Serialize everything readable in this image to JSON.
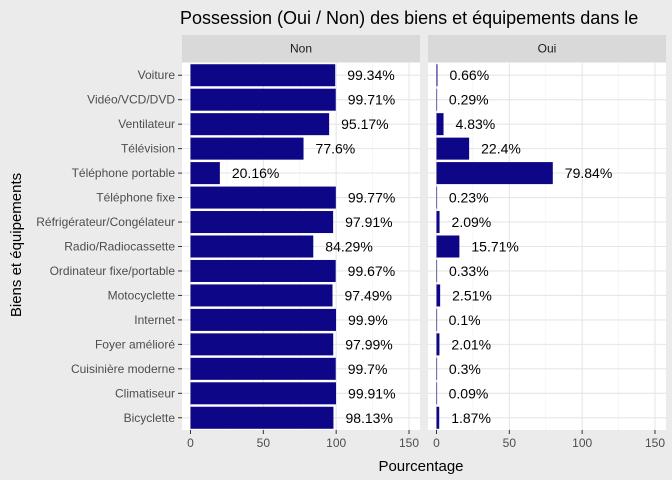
{
  "chart_data": {
    "type": "bar",
    "orientation": "horizontal",
    "title": "Possession (Oui / Non) des biens et équipements dans le",
    "xlabel": "Pourcentage",
    "ylabel": "Biens et équipements",
    "xlim": [
      0,
      150
    ],
    "x_ticks": [
      0,
      50,
      100,
      150
    ],
    "grid": true,
    "bar_color": "#0d0787",
    "categories": [
      "Voiture",
      "Vidéo/VCD/DVD",
      "Ventilateur",
      "Télévision",
      "Téléphone portable",
      "Téléphone fixe",
      "Réfrigérateur/Congélateur",
      "Radio/Radiocassette",
      "Ordinateur fixe/portable",
      "Motocyclette",
      "Internet",
      "Foyer amélioré",
      "Cuisinière moderne",
      "Climatiseur",
      "Bicyclette"
    ],
    "facets": [
      {
        "name": "Non",
        "values": [
          99.34,
          99.71,
          95.17,
          77.6,
          20.16,
          99.77,
          97.91,
          84.29,
          99.67,
          97.49,
          99.9,
          97.99,
          99.7,
          99.91,
          98.13
        ],
        "labels": [
          "99.34%",
          "99.71%",
          "95.17%",
          "77.6%",
          "20.16%",
          "99.77%",
          "97.91%",
          "84.29%",
          "99.67%",
          "97.49%",
          "99.9%",
          "97.99%",
          "99.7%",
          "99.91%",
          "98.13%"
        ]
      },
      {
        "name": "Oui",
        "values": [
          0.66,
          0.29,
          4.83,
          22.4,
          79.84,
          0.23,
          2.09,
          15.71,
          0.33,
          2.51,
          0.1,
          2.01,
          0.3,
          0.09,
          1.87
        ],
        "labels": [
          "0.66%",
          "0.29%",
          "4.83%",
          "22.4%",
          "79.84%",
          "0.23%",
          "2.09%",
          "15.71%",
          "0.33%",
          "2.51%",
          "0.1%",
          "2.01%",
          "0.3%",
          "0.09%",
          "1.87%"
        ]
      }
    ]
  }
}
